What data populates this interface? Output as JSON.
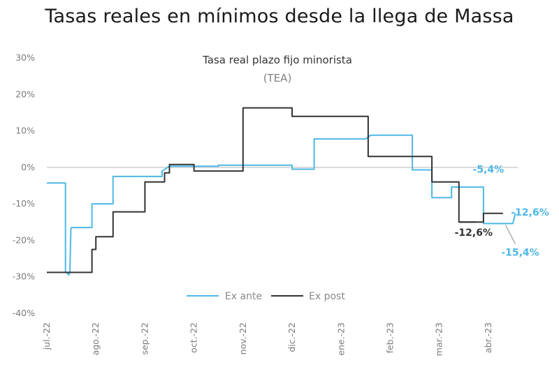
{
  "page": {
    "title": "Tasas reales en mínimos desde la llega de Massa"
  },
  "chart_data": {
    "type": "line",
    "title": "Tasa real plazo fijo minorista",
    "subtitle": "(TEA)",
    "xlabel": "",
    "ylabel": "",
    "ylim": [
      -40,
      30
    ],
    "yticks": [
      {
        "value": 30,
        "label": "30%"
      },
      {
        "value": 20,
        "label": "20%"
      },
      {
        "value": 10,
        "label": "10%"
      },
      {
        "value": 0,
        "label": "0%"
      },
      {
        "value": -10,
        "label": "-10%"
      },
      {
        "value": -20,
        "label": "-20%"
      },
      {
        "value": -30,
        "label": "-30%"
      },
      {
        "value": -40,
        "label": "-40%"
      }
    ],
    "xlim": [
      0,
      9.6
    ],
    "xticks": [
      {
        "value": 0,
        "label": "jul.-22"
      },
      {
        "value": 1,
        "label": "ago.-22"
      },
      {
        "value": 2,
        "label": "sep.-22"
      },
      {
        "value": 3,
        "label": "oct.-22"
      },
      {
        "value": 4,
        "label": "nov.-22"
      },
      {
        "value": 5,
        "label": "dic.-22"
      },
      {
        "value": 6,
        "label": "ene.-23"
      },
      {
        "value": 7,
        "label": "feb.-23"
      },
      {
        "value": 8,
        "label": "mar.-23"
      },
      {
        "value": 9,
        "label": "abr.-23"
      }
    ],
    "grid": false,
    "colors": {
      "ex_ante": "#4db8e8",
      "ex_post": "#333333",
      "zero_line": "#d9d9d9"
    },
    "series": [
      {
        "name": "Ex ante",
        "color": "#4db8e8",
        "x": [
          0,
          0.38,
          0.38,
          0.45,
          0.47,
          0.49,
          0.5,
          0.5,
          0.92,
          0.92,
          1.35,
          1.35,
          1.92,
          1.92,
          2.35,
          2.35,
          2.5,
          2.55,
          3.05,
          3.05,
          3.5,
          3.5,
          4.5,
          4.55,
          5.0,
          5.0,
          5.45,
          5.45,
          6.5,
          6.6,
          7.45,
          7.45,
          7.85,
          7.85,
          8.25,
          8.25,
          8.75,
          8.75,
          8.9,
          8.9,
          9.5,
          9.55
        ],
        "y": [
          -4.3,
          -4.3,
          -28.5,
          -29.5,
          -28.5,
          -17,
          -16.5,
          -16.5,
          -16.5,
          -10,
          -10,
          -2.5,
          -2.5,
          -2.5,
          -2.5,
          -1,
          0.3,
          0.3,
          0.3,
          0.3,
          0.3,
          0.6,
          0.6,
          0.6,
          0.6,
          -0.5,
          -0.5,
          7.8,
          7.8,
          8.8,
          8.8,
          -0.7,
          -0.7,
          -8.3,
          -8.3,
          -5.4,
          -5.4,
          -5.4,
          -5.4,
          -15.4,
          -15.4,
          -12.6
        ]
      },
      {
        "name": "Ex post",
        "color": "#333333",
        "x": [
          0,
          0.92,
          0.92,
          1.0,
          1.0,
          1.35,
          1.35,
          2.0,
          2.0,
          2.4,
          2.4,
          2.5,
          2.5,
          3.0,
          3.0,
          3.0,
          4.0,
          4.0,
          4.45,
          4.6,
          5.0,
          5.0,
          5.55,
          5.55,
          6.55,
          6.55,
          6.95,
          6.95,
          7.85,
          7.85,
          8.4,
          8.4,
          8.75
        ],
        "y": [
          -28.8,
          -28.8,
          -22.5,
          -22.5,
          -19,
          -19,
          -12.2,
          -12.2,
          -4,
          -4,
          -1.5,
          -1.5,
          0.8,
          0.8,
          -1,
          -1,
          -1,
          16.3,
          16.3,
          16.3,
          16.3,
          14,
          14,
          14,
          14,
          3,
          3,
          3,
          3,
          -4,
          -4,
          -15,
          -15
        ]
      },
      {
        "name": "Ex post (cont.)",
        "color": "#333333",
        "x": [
          8.4,
          8.9,
          8.9,
          9.3
        ],
        "y": [
          -15,
          -15,
          -12.6,
          -12.6
        ]
      }
    ],
    "legend": {
      "position": "bottom-center",
      "entries": [
        {
          "label": "Ex ante",
          "color": "#4db8e8"
        },
        {
          "label": "Ex post",
          "color": "#333333"
        }
      ]
    },
    "annotations": [
      {
        "label": "-5,4%",
        "x": 9.0,
        "y": -1.5,
        "color": "#4db8e8"
      },
      {
        "label": "-12,6%",
        "x": 9.85,
        "y": -13.2,
        "color": "#4db8e8"
      },
      {
        "label": "-12,6%",
        "x": 8.7,
        "y": -18.8,
        "color": "#333333"
      },
      {
        "label": "-15,4%",
        "x": 9.65,
        "y": -24.2,
        "color": "#4db8e8"
      }
    ]
  }
}
